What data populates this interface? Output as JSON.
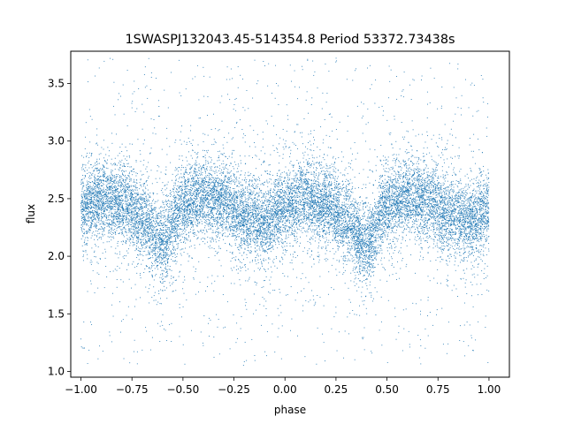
{
  "chart_data": {
    "type": "scatter",
    "title": "1SWASPJ132043.45-514354.8 Period 53372.73438s",
    "xlabel": "phase",
    "ylabel": "flux",
    "xlim": [
      -1.05,
      1.1
    ],
    "ylim": [
      0.95,
      3.78
    ],
    "xticks": [
      -1.0,
      -0.75,
      -0.5,
      -0.25,
      0.0,
      0.25,
      0.5,
      0.75,
      1.0
    ],
    "xtick_labels": [
      "−1.00",
      "−0.75",
      "−0.50",
      "−0.25",
      "0.00",
      "0.25",
      "0.50",
      "0.75",
      "1.00"
    ],
    "yticks": [
      1.0,
      1.5,
      2.0,
      2.5,
      3.0,
      3.5
    ],
    "ytick_labels": [
      "1.0",
      "1.5",
      "2.0",
      "2.5",
      "3.0",
      "3.5"
    ],
    "grid": false,
    "marker_color": "#1f77b4",
    "point_count_estimate": 16000,
    "x_range": [
      -1.0,
      1.0
    ],
    "profile_phase": [
      -1.0,
      -0.9,
      -0.8,
      -0.7,
      -0.6,
      -0.5,
      -0.4,
      -0.3,
      -0.2,
      -0.1,
      0.0,
      0.1,
      0.2,
      0.3,
      0.4,
      0.5,
      0.6,
      0.7,
      0.8,
      0.9,
      1.0
    ],
    "profile_median_flux": [
      2.42,
      2.5,
      2.47,
      2.32,
      2.12,
      2.45,
      2.52,
      2.48,
      2.35,
      2.3,
      2.42,
      2.5,
      2.45,
      2.3,
      2.1,
      2.45,
      2.52,
      2.48,
      2.35,
      2.3,
      2.42
    ],
    "core_scatter": 0.16,
    "outlier_range": [
      1.05,
      3.72
    ]
  }
}
